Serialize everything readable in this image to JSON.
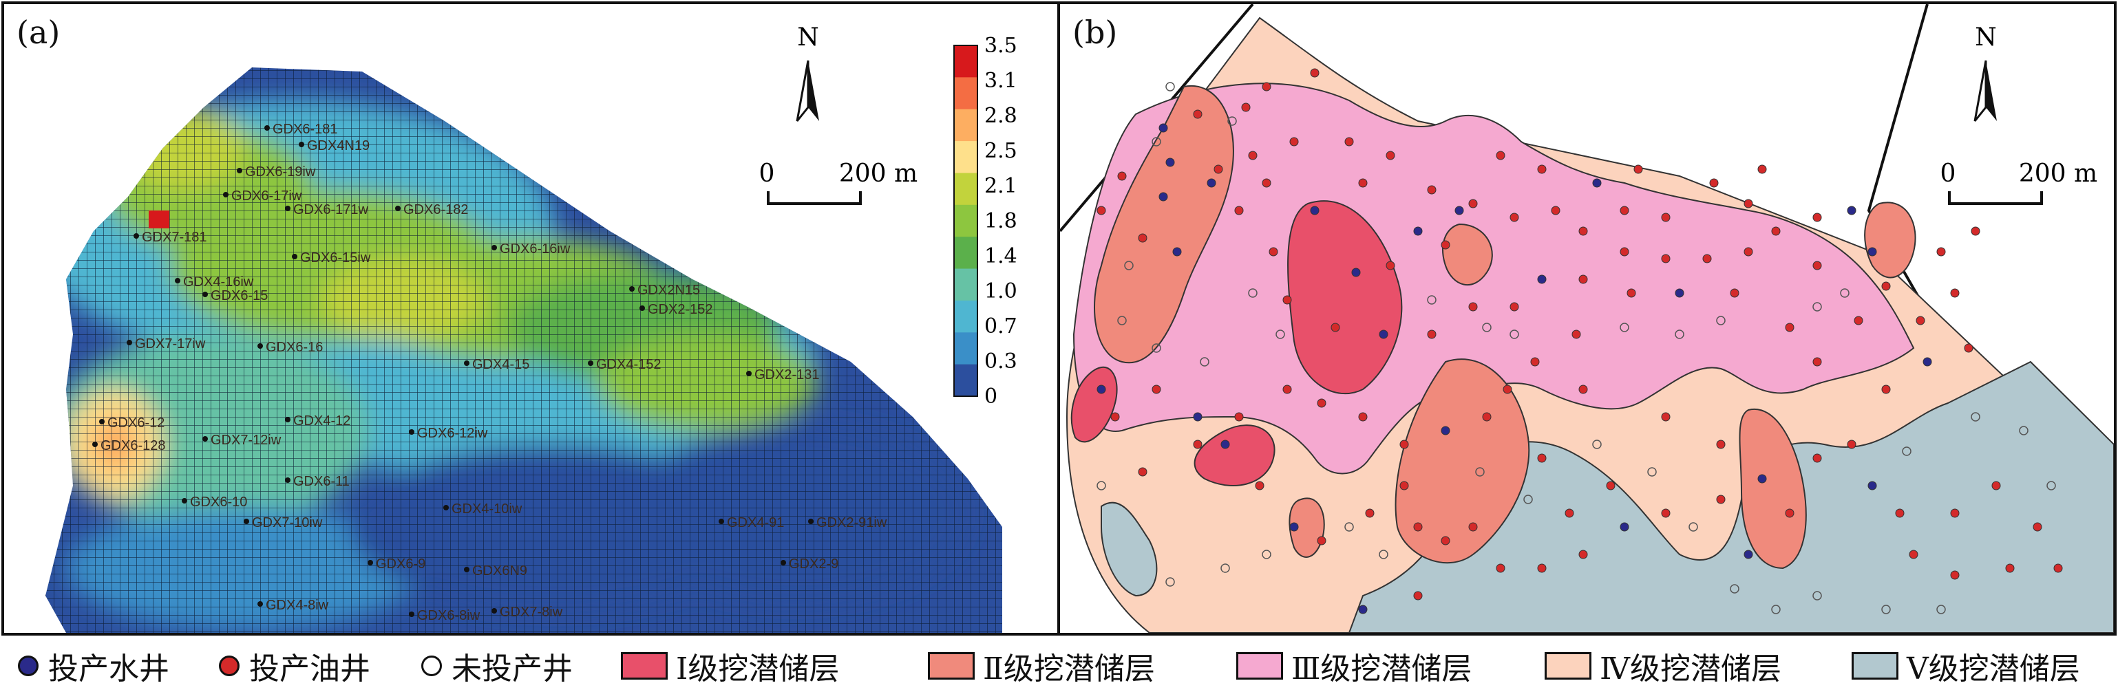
{
  "panel_a": {
    "label": "(a)",
    "north": "N",
    "scale_zero": "0",
    "scale_text": "200 m",
    "colorbar_ticks": [
      "3.5",
      "3.1",
      "2.8",
      "2.5",
      "2.1",
      "1.8",
      "1.4",
      "1.0",
      "0.7",
      "0.3",
      "0"
    ],
    "colorbar_colors": [
      "#d7191c",
      "#f46d43",
      "#fdae61",
      "#fee08b",
      "#c2d33c",
      "#8dc63f",
      "#5bb04b",
      "#66c2a5",
      "#4fb6d1",
      "#3a8fc8",
      "#2c4f9e"
    ],
    "wells": [
      "GDX6-181",
      "GDX4N19",
      "GDX6-19iw",
      "GDX6-17iw",
      "GDX6-171w",
      "GDX6-182",
      "GDX7-181",
      "GDX6-16iw",
      "GDX6-15iw",
      "GDX4-16iw",
      "GDX6-15",
      "GDX2N15",
      "GDX2-152",
      "GDX7-17iw",
      "GDX6-16",
      "GDX4-15",
      "GDX4-152",
      "GDX2-131",
      "GDX6-12",
      "GDX7-12iw",
      "GDX6-12iw",
      "GDX4-12",
      "GDX6-128",
      "GDX6-11",
      "GDX6-10",
      "GDX7-10iw",
      "GDX4-10iw",
      "GDX4-91",
      "GDX2-91iw",
      "GDX2-9",
      "GDX6N9",
      "GDX6-9",
      "GDX4-8iw",
      "GDX6-8iw",
      "GDX7-8iw"
    ]
  },
  "panel_b": {
    "label": "(b)",
    "north": "N",
    "scale_zero": "0",
    "scale_text": "200 m",
    "zone_colors": {
      "I": "#e8506a",
      "II": "#f08a7c",
      "III": "#f5a9d0",
      "IV": "#fcd3bd",
      "V": "#b2c8cf"
    }
  },
  "legend": {
    "water_well": "投产水井",
    "oil_well": "投产油井",
    "unproduced_well": "未投产井",
    "zone_1": "Ⅰ级挖潜储层",
    "zone_2": "Ⅱ级挖潜储层",
    "zone_3": "Ⅲ级挖潜储层",
    "zone_4": "Ⅳ级挖潜储层",
    "zone_5": "Ⅴ级挖潜储层",
    "water_color": "#2a2a8a",
    "oil_color": "#d42a2a"
  }
}
